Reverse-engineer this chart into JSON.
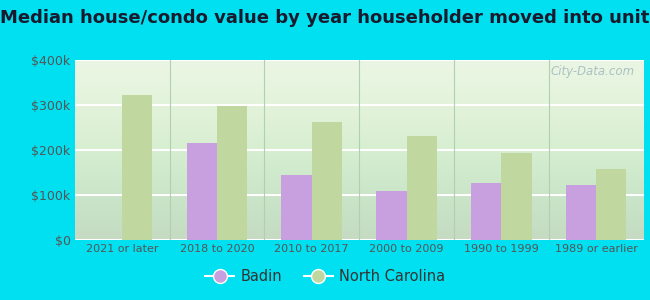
{
  "title": "Median house/condo value by year householder moved into unit",
  "categories": [
    "2021 or later",
    "2018 to 2020",
    "2010 to 2017",
    "2000 to 2009",
    "1990 to 1999",
    "1989 or earlier"
  ],
  "badin_values": [
    null,
    215000,
    145000,
    110000,
    127000,
    122000
  ],
  "nc_values": [
    322000,
    297000,
    262000,
    232000,
    193000,
    158000
  ],
  "badin_color": "#c8a0e0",
  "nc_color": "#c0d8a0",
  "background_color": "#e8f5e0",
  "outer_background": "#00e0f0",
  "ylim": [
    0,
    400000
  ],
  "yticks": [
    0,
    100000,
    200000,
    300000,
    400000
  ],
  "ytick_labels": [
    "$0",
    "$100k",
    "$200k",
    "$300k",
    "$400k"
  ],
  "watermark": "City-Data.com",
  "legend_badin": "Badin",
  "legend_nc": "North Carolina",
  "bar_width": 0.32,
  "title_fontsize": 13,
  "title_color": "#1a1a2e"
}
